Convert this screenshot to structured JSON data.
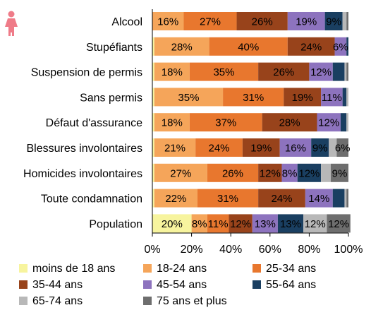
{
  "colors": {
    "moins18": "#f7f49e",
    "a18_24": "#f5a55a",
    "a25_34": "#e8772e",
    "a35_44": "#98431b",
    "a45_54": "#8d73be",
    "a55_64": "#1a3f61",
    "a65_74": "#b8b8b8",
    "a75plus": "#6e6e6e"
  },
  "icon": "female-figure-icon",
  "chart_data": {
    "type": "bar",
    "orientation": "horizontal",
    "stacked": true,
    "normalized": true,
    "categories": [
      "Alcool",
      "Stupéfiants",
      "Suspension de permis",
      "Sans permis",
      "Défaut d'assurance",
      "Blessures involontaires",
      "Homicides involontaires",
      "Toute condamnation",
      "Population"
    ],
    "series": [
      {
        "name": "moins de 18 ans",
        "color": "#f7f49e",
        "values": [
          0,
          1,
          1,
          1,
          1,
          1,
          1,
          1,
          20
        ]
      },
      {
        "name": "18-24 ans",
        "color": "#f5a55a",
        "values": [
          16,
          28,
          18,
          35,
          18,
          21,
          27,
          22,
          8
        ]
      },
      {
        "name": "25-34 ans",
        "color": "#e8772e",
        "values": [
          27,
          40,
          35,
          31,
          37,
          24,
          26,
          31,
          11
        ]
      },
      {
        "name": "35-44 ans",
        "color": "#98431b",
        "values": [
          26,
          24,
          26,
          19,
          28,
          19,
          12,
          24,
          12
        ]
      },
      {
        "name": "45-54 ans",
        "color": "#8d73be",
        "values": [
          19,
          6,
          12,
          11,
          12,
          16,
          8,
          14,
          13
        ]
      },
      {
        "name": "55-64 ans",
        "color": "#1a3f61",
        "values": [
          9,
          1,
          6,
          2,
          3,
          9,
          12,
          6,
          13
        ]
      },
      {
        "name": "65-74 ans",
        "color": "#b8b8b8",
        "values": [
          2,
          0,
          1,
          1,
          1,
          4,
          5,
          1,
          12
        ]
      },
      {
        "name": "75 ans et plus",
        "color": "#6e6e6e",
        "values": [
          1,
          0,
          1,
          0,
          0,
          6,
          9,
          1,
          12
        ]
      }
    ],
    "data_labels": [
      [
        "",
        "16%",
        "27%",
        "26%",
        "19%",
        "9%",
        "",
        ""
      ],
      [
        "",
        "28%",
        "40%",
        "24%",
        "6%",
        "",
        "",
        ""
      ],
      [
        "",
        "18%",
        "35%",
        "26%",
        "12%",
        "",
        "",
        ""
      ],
      [
        "",
        "35%",
        "31%",
        "19%",
        "11%",
        "",
        "",
        ""
      ],
      [
        "",
        "18%",
        "37%",
        "28%",
        "12%",
        "",
        "",
        ""
      ],
      [
        "",
        "21%",
        "24%",
        "19%",
        "16%",
        "9%",
        "",
        "6%"
      ],
      [
        "",
        "27%",
        "26%",
        "12%",
        "8%",
        "12%",
        "",
        "9%"
      ],
      [
        "",
        "22%",
        "31%",
        "24%",
        "14%",
        "",
        "",
        ""
      ],
      [
        "20%",
        "8%",
        "11%",
        "12%",
        "13%",
        "13%",
        "12%",
        "12%"
      ]
    ],
    "xticks": [
      "0%",
      "20%",
      "40%",
      "60%",
      "80%",
      "100%"
    ],
    "xlim": [
      0,
      100
    ],
    "grid": false,
    "legend_position": "bottom"
  }
}
